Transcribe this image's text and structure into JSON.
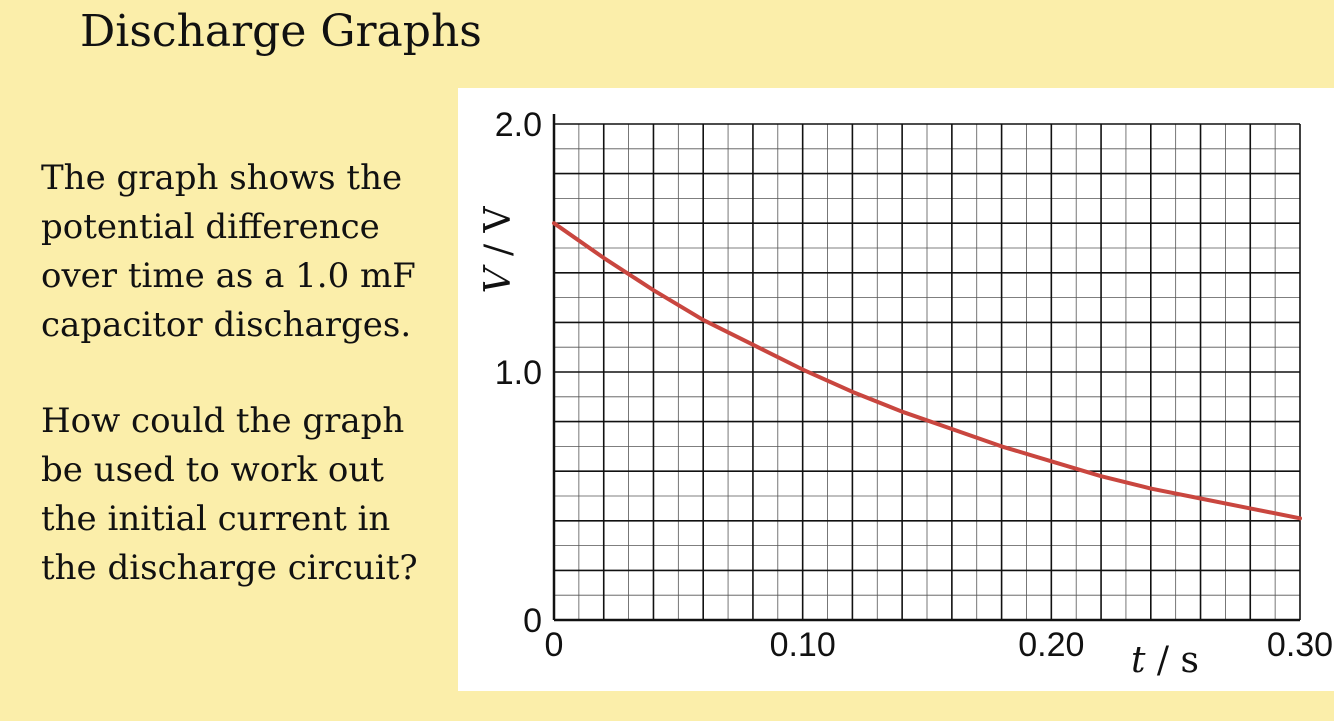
{
  "slide": {
    "title": "Discharge Graphs",
    "paragraph1": [
      "The graph shows the",
      "potential difference",
      "over time as a 1.0 mF",
      "capacitor discharges."
    ],
    "paragraph2": [
      "How could the graph",
      "be used to work out",
      "the initial current in",
      "the discharge circuit?"
    ]
  },
  "chart_data": {
    "type": "line",
    "title": "",
    "xlabel_symbol": "t",
    "xlabel_unit": "s",
    "ylabel_symbol": "V",
    "ylabel_unit": "V",
    "xlim": [
      0,
      0.3
    ],
    "ylim": [
      0,
      2.0
    ],
    "x_ticks": [
      "0",
      "0.10",
      "0.20",
      "0.30"
    ],
    "x_tick_values": [
      0,
      0.1,
      0.2,
      0.3
    ],
    "y_ticks": [
      "0",
      "1.0",
      "2.0"
    ],
    "y_tick_values": [
      0,
      1.0,
      2.0
    ],
    "grid": true,
    "grid_major_divisions_x": 15,
    "grid_major_divisions_y": 10,
    "grid_minor_per_major": 2,
    "series": [
      {
        "color": "#c9463f",
        "x": [
          0,
          0.02,
          0.04,
          0.06,
          0.08,
          0.1,
          0.12,
          0.14,
          0.16,
          0.18,
          0.2,
          0.22,
          0.24,
          0.26,
          0.28,
          0.3
        ],
        "values": [
          1.6,
          1.46,
          1.33,
          1.21,
          1.11,
          1.01,
          0.92,
          0.84,
          0.77,
          0.7,
          0.64,
          0.58,
          0.53,
          0.49,
          0.45,
          0.41
        ]
      }
    ]
  }
}
